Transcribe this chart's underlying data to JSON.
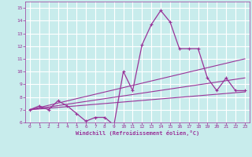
{
  "xlabel": "Windchill (Refroidissement éolien,°C)",
  "ylabel": "",
  "background_color": "#c8ecec",
  "grid_color": "#aadddd",
  "line_color": "#993399",
  "xlim": [
    -0.5,
    23.5
  ],
  "ylim": [
    6,
    15.5
  ],
  "xticks": [
    0,
    1,
    2,
    3,
    4,
    5,
    6,
    7,
    8,
    9,
    10,
    11,
    12,
    13,
    14,
    15,
    16,
    17,
    18,
    19,
    20,
    21,
    22,
    23
  ],
  "yticks": [
    6,
    7,
    8,
    9,
    10,
    11,
    12,
    13,
    14,
    15
  ],
  "series": [
    {
      "x": [
        0,
        1,
        2,
        3,
        4,
        5,
        6,
        7,
        8,
        9,
        10,
        11,
        12,
        13,
        14,
        15,
        16,
        17,
        18,
        19,
        20,
        21,
        22,
        23
      ],
      "y": [
        7.0,
        7.3,
        7.0,
        7.7,
        7.3,
        6.7,
        6.1,
        6.4,
        6.4,
        5.8,
        10.0,
        8.5,
        12.1,
        13.7,
        14.8,
        13.9,
        11.8,
        11.8,
        11.8,
        9.5,
        8.5,
        9.5,
        8.5,
        8.5
      ],
      "marker": "+",
      "markersize": 3.5,
      "linewidth": 0.9
    },
    {
      "x": [
        0,
        23
      ],
      "y": [
        7.0,
        11.0
      ],
      "marker": null,
      "markersize": 0,
      "linewidth": 0.8
    },
    {
      "x": [
        0,
        23
      ],
      "y": [
        7.0,
        9.5
      ],
      "marker": null,
      "markersize": 0,
      "linewidth": 0.8
    },
    {
      "x": [
        0,
        23
      ],
      "y": [
        7.0,
        8.4
      ],
      "marker": null,
      "markersize": 0,
      "linewidth": 0.8
    }
  ]
}
